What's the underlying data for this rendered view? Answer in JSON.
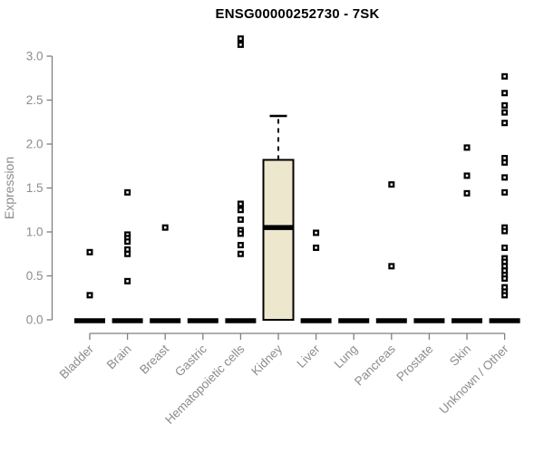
{
  "chart_data": {
    "type": "boxplot",
    "title": "ENSG00000252730 - 7SK",
    "xlabel": "",
    "ylabel": "Expression",
    "ylim": [
      0.0,
      3.0
    ],
    "yticks": [
      "0.0",
      "0.5",
      "1.0",
      "1.5",
      "2.0",
      "2.5",
      "3.0"
    ],
    "grid": false,
    "legend": false,
    "categories": [
      "Bladder",
      "Brain",
      "Breast",
      "Gastric",
      "Hematopoietic cells",
      "Kidney",
      "Liver",
      "Lung",
      "Pancreas",
      "Prostate",
      "Skin",
      "Unknown / Other"
    ],
    "colors": {
      "box_fill": "#ECE7CD",
      "box_stroke": "#000000",
      "median": "#000000",
      "point": "#000000",
      "point_center": "#FFFFFF",
      "axis_line": "#7F7F7F",
      "tick_text": "#8C8C8C",
      "title": "#000000"
    },
    "groups": [
      {
        "label": "Bladder",
        "box": {
          "median": 0,
          "q1": 0,
          "q3": 0,
          "whisker_low": 0,
          "whisker_high": 0
        },
        "points": [
          0.77,
          0.28
        ]
      },
      {
        "label": "Brain",
        "box": {
          "median": 0,
          "q1": 0,
          "q3": 0,
          "whisker_low": 0,
          "whisker_high": 0
        },
        "points": [
          1.45,
          0.97,
          0.93,
          0.89,
          0.8,
          0.75,
          0.44
        ]
      },
      {
        "label": "Breast",
        "box": {
          "median": 0,
          "q1": 0,
          "q3": 0,
          "whisker_low": 0,
          "whisker_high": 0
        },
        "points": [
          1.05
        ]
      },
      {
        "label": "Gastric",
        "box": {
          "median": 0,
          "q1": 0,
          "q3": 0,
          "whisker_low": 0,
          "whisker_high": 0
        },
        "points": []
      },
      {
        "label": "Hematopoietic cells",
        "box": {
          "median": 0,
          "q1": 0,
          "q3": 0,
          "whisker_low": 0,
          "whisker_high": 0
        },
        "points": [
          3.2,
          3.13,
          1.32,
          1.25,
          1.14,
          1.02,
          0.98,
          0.85,
          0.75
        ]
      },
      {
        "label": "Kidney",
        "box": {
          "median": 1.05,
          "q1": 0.0,
          "q3": 1.82,
          "whisker_low": 0.0,
          "whisker_high": 2.32
        },
        "points": []
      },
      {
        "label": "Liver",
        "box": {
          "median": 0,
          "q1": 0,
          "q3": 0,
          "whisker_low": 0,
          "whisker_high": 0
        },
        "points": [
          0.99,
          0.82
        ]
      },
      {
        "label": "Lung",
        "box": {
          "median": 0,
          "q1": 0,
          "q3": 0,
          "whisker_low": 0,
          "whisker_high": 0
        },
        "points": []
      },
      {
        "label": "Pancreas",
        "box": {
          "median": 0,
          "q1": 0,
          "q3": 0,
          "whisker_low": 0,
          "whisker_high": 0
        },
        "points": [
          1.54,
          0.61
        ]
      },
      {
        "label": "Prostate",
        "box": {
          "median": 0,
          "q1": 0,
          "q3": 0,
          "whisker_low": 0,
          "whisker_high": 0
        },
        "points": []
      },
      {
        "label": "Skin",
        "box": {
          "median": 0,
          "q1": 0,
          "q3": 0,
          "whisker_low": 0,
          "whisker_high": 0
        },
        "points": [
          1.96,
          1.64,
          1.44
        ]
      },
      {
        "label": "Unknown / Other",
        "box": {
          "median": 0,
          "q1": 0,
          "q3": 0,
          "whisker_low": 0,
          "whisker_high": 0
        },
        "points": [
          2.77,
          2.58,
          2.44,
          2.36,
          2.24,
          1.84,
          1.79,
          1.62,
          1.45,
          1.05,
          1.01,
          0.82,
          0.7,
          0.66,
          0.61,
          0.56,
          0.51,
          0.47,
          0.37,
          0.32,
          0.28
        ]
      }
    ]
  }
}
